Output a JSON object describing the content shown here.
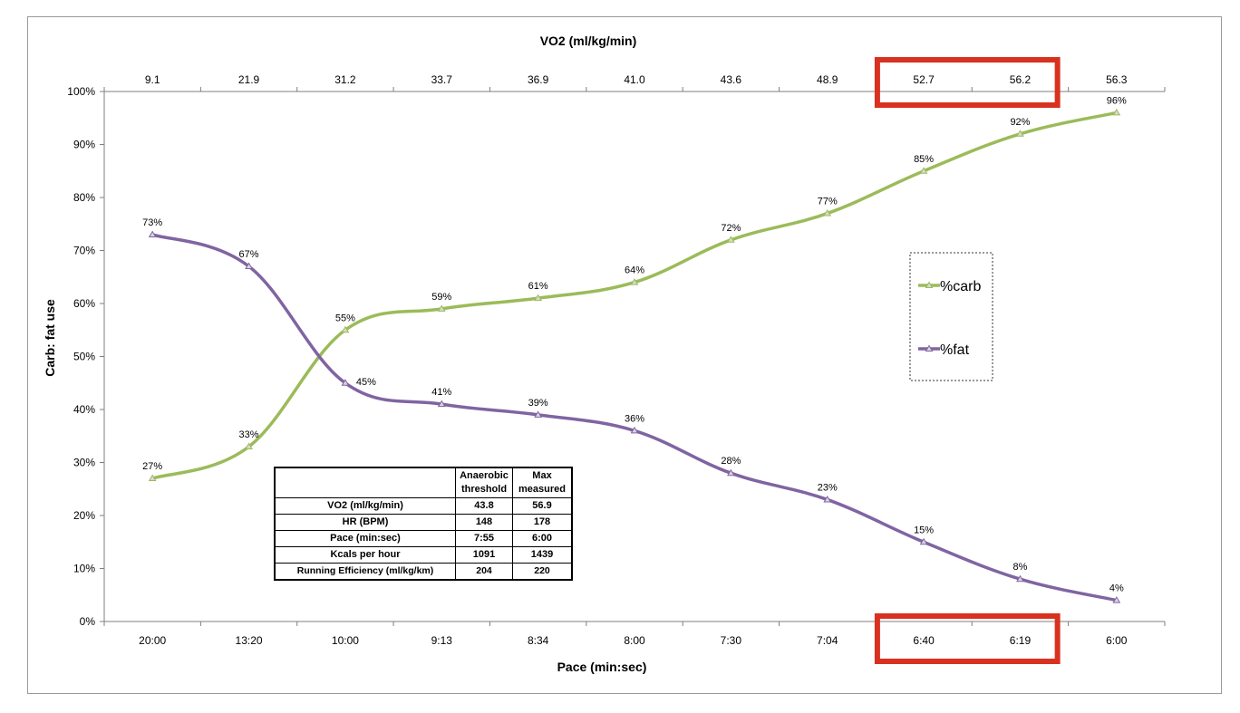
{
  "chart_data": {
    "type": "line",
    "title": "",
    "xlabel": "Pace (min:sec)",
    "x2label": "VO2 (ml/kg/min)",
    "ylabel": "Carb: fat use",
    "ylim": [
      0,
      100
    ],
    "yticks": [
      "0%",
      "10%",
      "20%",
      "30%",
      "40%",
      "50%",
      "60%",
      "70%",
      "80%",
      "90%",
      "100%"
    ],
    "categories": [
      "20:00",
      "13:20",
      "10:00",
      "9:13",
      "8:34",
      "8:00",
      "7:30",
      "7:04",
      "6:40",
      "6:19",
      "6:00"
    ],
    "top_categories": [
      "9.1",
      "21.9",
      "31.2",
      "33.7",
      "36.9",
      "41.0",
      "43.6",
      "48.9",
      "52.7",
      "56.2",
      "56.3"
    ],
    "series": [
      {
        "name": "%carb",
        "color": "#9bbb59",
        "values": [
          27,
          33,
          55,
          59,
          61,
          64,
          72,
          77,
          85,
          92,
          96
        ],
        "labels": [
          "27%",
          "33%",
          "55%",
          "59%",
          "61%",
          "64%",
          "72%",
          "77%",
          "85%",
          "92%",
          "96%"
        ]
      },
      {
        "name": "%fat",
        "color": "#8064a2",
        "values": [
          73,
          67,
          45,
          41,
          39,
          36,
          28,
          23,
          15,
          8,
          4
        ],
        "labels": [
          "73%",
          "67%",
          "45%",
          "41%",
          "39%",
          "36%",
          "28%",
          "23%",
          "15%",
          "8%",
          "4%"
        ]
      }
    ],
    "legend_position": "right",
    "highlight_color": "#d9311f",
    "highlight_categories": [
      "6:40",
      "6:19"
    ]
  },
  "table": {
    "headers": [
      "",
      "Anaerobic threshold",
      "Max measured"
    ],
    "header_lines": [
      [
        "Anaerobic",
        "threshold"
      ],
      [
        "Max",
        "measured"
      ]
    ],
    "rows": [
      [
        "VO2 (ml/kg/min)",
        "43.8",
        "56.9"
      ],
      [
        "HR (BPM)",
        "148",
        "178"
      ],
      [
        "Pace (min:sec)",
        "7:55",
        "6:00"
      ],
      [
        "Kcals per hour",
        "1091",
        "1439"
      ],
      [
        "Running Efficiency (ml/kg/km)",
        "204",
        "220"
      ]
    ]
  }
}
